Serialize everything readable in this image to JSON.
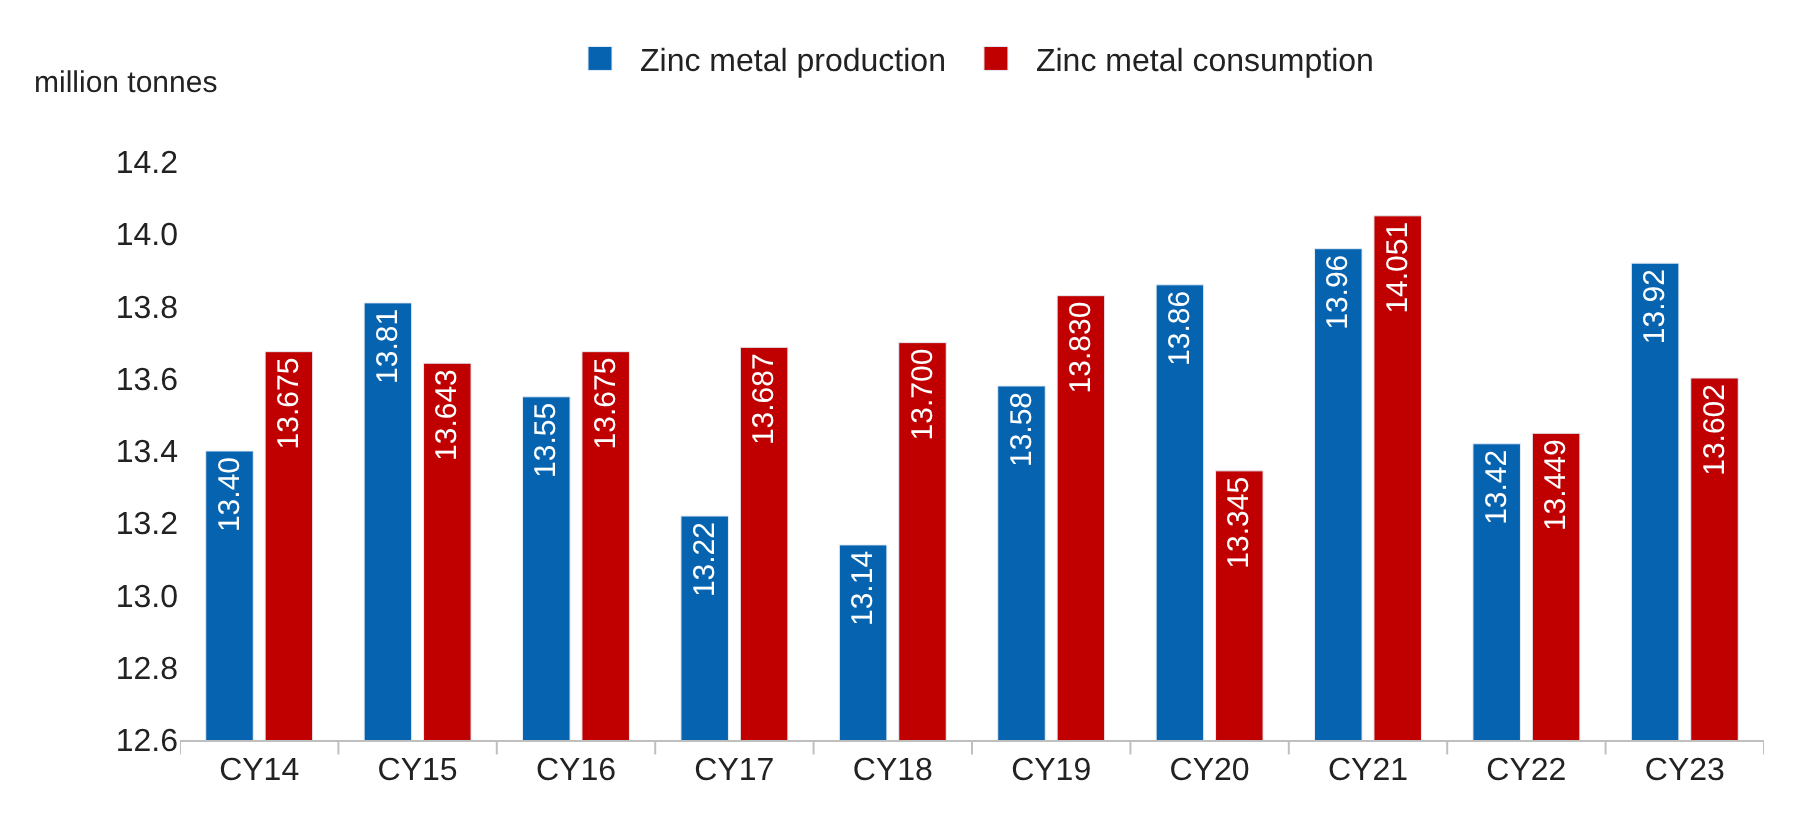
{
  "chart_data": {
    "type": "bar",
    "ylabel": "million tonnes",
    "categories": [
      "CY14",
      "CY15",
      "CY16",
      "CY17",
      "CY18",
      "CY19",
      "CY20",
      "CY21",
      "CY22",
      "CY23"
    ],
    "series": [
      {
        "name": "Zinc metal production",
        "color": "#0563b0",
        "values": [
          13.4,
          13.81,
          13.55,
          13.22,
          13.14,
          13.58,
          13.86,
          13.96,
          13.42,
          13.92
        ],
        "value_labels": [
          "13.40",
          "13.81",
          "13.55",
          "13.22",
          "13.14",
          "13.58",
          "13.86",
          "13.96",
          "13.42",
          "13.92"
        ]
      },
      {
        "name": "Zinc metal consumption",
        "color": "#c00000",
        "values": [
          13.675,
          13.643,
          13.675,
          13.687,
          13.7,
          13.83,
          13.345,
          14.051,
          13.449,
          13.602
        ],
        "value_labels": [
          "13.675",
          "13.643",
          "13.675",
          "13.687",
          "13.700",
          "13.830",
          "13.345",
          "14.051",
          "13.449",
          "13.602"
        ]
      }
    ],
    "ylim": [
      12.6,
      14.2
    ],
    "yticks": [
      {
        "value": 12.6,
        "label": "12.6"
      },
      {
        "value": 12.8,
        "label": "12.8"
      },
      {
        "value": 13.0,
        "label": "13.0"
      },
      {
        "value": 13.2,
        "label": "13.2"
      },
      {
        "value": 13.4,
        "label": "13.4"
      },
      {
        "value": 13.6,
        "label": "13.6"
      },
      {
        "value": 13.8,
        "label": "13.8"
      },
      {
        "value": 14.0,
        "label": "14.0"
      },
      {
        "value": 14.2,
        "label": "14.2"
      }
    ],
    "grid": false,
    "legend": "top"
  }
}
